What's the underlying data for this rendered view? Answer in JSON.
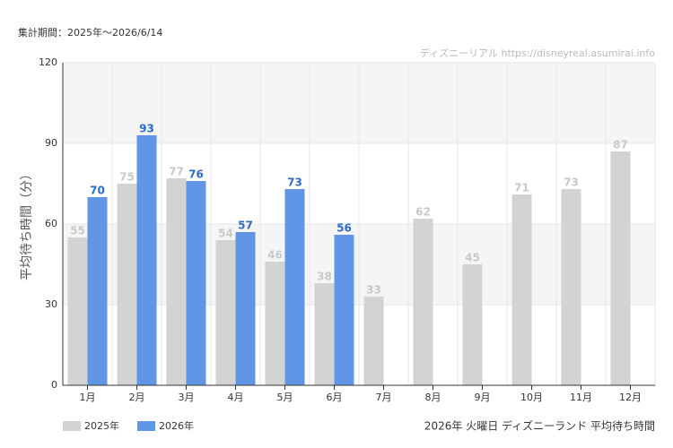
{
  "chart_data": {
    "type": "bar",
    "subtitle": "集計期間：2025年～2026/6/14",
    "source": "ディズニーリアル https://disneyreal.asumirai.info",
    "ylabel": "平均待ち時間（分）",
    "footer": "2026年 火曜日 ディズニーランド 平均待ち時間",
    "categories": [
      "1月",
      "2月",
      "3月",
      "4月",
      "5月",
      "6月",
      "7月",
      "8月",
      "9月",
      "10月",
      "11月",
      "12月"
    ],
    "series": [
      {
        "name": "2025年",
        "color": "#d3d3d2",
        "label_color": "#c8c8c8",
        "values": [
          55,
          75,
          77,
          54,
          46,
          38,
          33,
          62,
          45,
          71,
          73,
          87
        ]
      },
      {
        "name": "2026年",
        "color": "#6196e6",
        "label_color": "#2b6cc4",
        "values": [
          70,
          93,
          76,
          57,
          73,
          56,
          null,
          null,
          null,
          null,
          null,
          null
        ]
      }
    ],
    "ylim": [
      0,
      120
    ],
    "yticks": [
      0,
      30,
      60,
      90,
      120
    ],
    "grid": true,
    "legend": "bottom-left"
  }
}
